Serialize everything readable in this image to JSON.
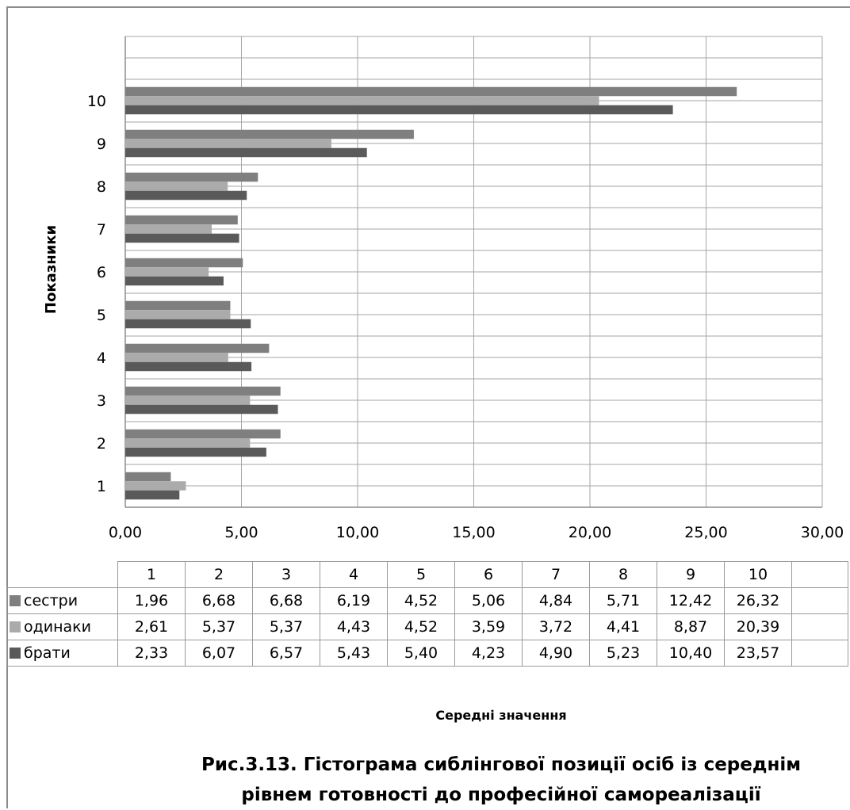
{
  "chart_data": {
    "type": "bar",
    "orientation": "horizontal",
    "categories": [
      "1",
      "2",
      "3",
      "4",
      "5",
      "6",
      "7",
      "8",
      "9",
      "10"
    ],
    "series": [
      {
        "name": "сестри",
        "color": "#7f7f7f",
        "values": [
          1.96,
          6.68,
          6.68,
          6.19,
          4.52,
          5.06,
          4.84,
          5.71,
          12.42,
          26.32
        ],
        "labels": [
          "1,96",
          "6,68",
          "6,68",
          "6,19",
          "4,52",
          "5,06",
          "4,84",
          "5,71",
          "12,42",
          "26,32"
        ]
      },
      {
        "name": "одинаки",
        "color": "#ababab",
        "values": [
          2.61,
          5.37,
          5.37,
          4.43,
          4.52,
          3.59,
          3.72,
          4.41,
          8.87,
          20.39
        ],
        "labels": [
          "2,61",
          "5,37",
          "5,37",
          "4,43",
          "4,52",
          "3,59",
          "3,72",
          "4,41",
          "8,87",
          "20,39"
        ]
      },
      {
        "name": "брати",
        "color": "#5a5a5a",
        "values": [
          2.33,
          6.07,
          6.57,
          5.43,
          5.4,
          4.23,
          4.9,
          5.23,
          10.4,
          23.57
        ],
        "labels": [
          "2,33",
          "6,07",
          "6,57",
          "5,43",
          "5,40",
          "4,23",
          "4,90",
          "5,23",
          "10,40",
          "23,57"
        ]
      }
    ],
    "xlim": [
      0,
      30
    ],
    "xticks": [
      "0,00",
      "5,00",
      "10,00",
      "15,00",
      "20,00",
      "25,00",
      "30,00"
    ],
    "ylabel": "Показники",
    "xlabel": "Середні значення",
    "grid": true,
    "legend": "data table below chart"
  },
  "caption": {
    "line1": "Рис.3.13. Гістограма сиблінгової позиції осіб із середнім",
    "line2": "рівнем готовності до професійної самореалізації"
  }
}
